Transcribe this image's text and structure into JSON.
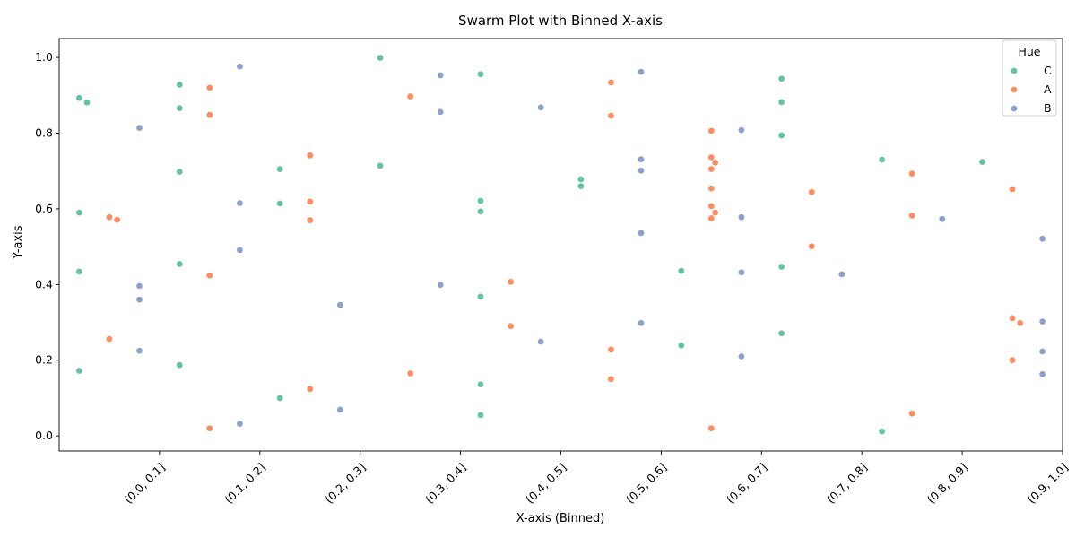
{
  "chart_data": {
    "type": "scatter",
    "subtype": "swarm",
    "title": "Swarm Plot with Binned X-axis",
    "xlabel": "X-axis (Binned)",
    "ylabel": "Y-axis",
    "categories": [
      "(0.0, 0.1]",
      "(0.1, 0.2]",
      "(0.2, 0.3]",
      "(0.3, 0.4]",
      "(0.4, 0.5]",
      "(0.5, 0.6]",
      "(0.6, 0.7]",
      "(0.7, 0.8]",
      "(0.8, 0.9]",
      "(0.9, 1.0]"
    ],
    "ylim": [
      -0.04,
      1.05
    ],
    "yticks": [
      "0.0",
      "0.2",
      "0.4",
      "0.6",
      "0.8",
      "1.0"
    ],
    "grid": false,
    "legend": {
      "title": "Hue",
      "placement": "top-right"
    },
    "series": [
      {
        "name": "C",
        "color": "#66c2a5",
        "points": [
          {
            "bin": 0,
            "y": 0.893
          },
          {
            "bin": 0,
            "y": 0.881
          },
          {
            "bin": 0,
            "y": 0.59
          },
          {
            "bin": 0,
            "y": 0.434
          },
          {
            "bin": 0,
            "y": 0.172
          },
          {
            "bin": 1,
            "y": 0.928
          },
          {
            "bin": 1,
            "y": 0.866
          },
          {
            "bin": 1,
            "y": 0.698
          },
          {
            "bin": 1,
            "y": 0.454
          },
          {
            "bin": 1,
            "y": 0.187
          },
          {
            "bin": 2,
            "y": 0.705
          },
          {
            "bin": 2,
            "y": 0.614
          },
          {
            "bin": 2,
            "y": 0.1
          },
          {
            "bin": 3,
            "y": 0.999
          },
          {
            "bin": 3,
            "y": 0.714
          },
          {
            "bin": 4,
            "y": 0.956
          },
          {
            "bin": 4,
            "y": 0.621
          },
          {
            "bin": 4,
            "y": 0.593
          },
          {
            "bin": 4,
            "y": 0.368
          },
          {
            "bin": 4,
            "y": 0.136
          },
          {
            "bin": 4,
            "y": 0.055
          },
          {
            "bin": 5,
            "y": 0.678
          },
          {
            "bin": 5,
            "y": 0.66
          },
          {
            "bin": 6,
            "y": 0.436
          },
          {
            "bin": 6,
            "y": 0.239
          },
          {
            "bin": 7,
            "y": 0.944
          },
          {
            "bin": 7,
            "y": 0.882
          },
          {
            "bin": 7,
            "y": 0.794
          },
          {
            "bin": 7,
            "y": 0.447
          },
          {
            "bin": 7,
            "y": 0.271
          },
          {
            "bin": 8,
            "y": 0.73
          },
          {
            "bin": 8,
            "y": 0.012
          },
          {
            "bin": 9,
            "y": 0.724
          }
        ]
      },
      {
        "name": "A",
        "color": "#fc8d62",
        "points": [
          {
            "bin": 0,
            "y": 0.578
          },
          {
            "bin": 0,
            "y": 0.571
          },
          {
            "bin": 0,
            "y": 0.256
          },
          {
            "bin": 1,
            "y": 0.92
          },
          {
            "bin": 1,
            "y": 0.848
          },
          {
            "bin": 1,
            "y": 0.424
          },
          {
            "bin": 1,
            "y": 0.02
          },
          {
            "bin": 2,
            "y": 0.741
          },
          {
            "bin": 2,
            "y": 0.619
          },
          {
            "bin": 2,
            "y": 0.57
          },
          {
            "bin": 2,
            "y": 0.124
          },
          {
            "bin": 3,
            "y": 0.897
          },
          {
            "bin": 3,
            "y": 0.165
          },
          {
            "bin": 4,
            "y": 0.407
          },
          {
            "bin": 4,
            "y": 0.29
          },
          {
            "bin": 5,
            "y": 0.934
          },
          {
            "bin": 5,
            "y": 0.846
          },
          {
            "bin": 5,
            "y": 0.228
          },
          {
            "bin": 5,
            "y": 0.15
          },
          {
            "bin": 6,
            "y": 0.806
          },
          {
            "bin": 6,
            "y": 0.736
          },
          {
            "bin": 6,
            "y": 0.722
          },
          {
            "bin": 6,
            "y": 0.705
          },
          {
            "bin": 6,
            "y": 0.654
          },
          {
            "bin": 6,
            "y": 0.607
          },
          {
            "bin": 6,
            "y": 0.59
          },
          {
            "bin": 6,
            "y": 0.575
          },
          {
            "bin": 6,
            "y": 0.02
          },
          {
            "bin": 7,
            "y": 0.644
          },
          {
            "bin": 7,
            "y": 0.501
          },
          {
            "bin": 8,
            "y": 0.693
          },
          {
            "bin": 8,
            "y": 0.582
          },
          {
            "bin": 8,
            "y": 0.059
          },
          {
            "bin": 9,
            "y": 0.652
          },
          {
            "bin": 9,
            "y": 0.311
          },
          {
            "bin": 9,
            "y": 0.298
          },
          {
            "bin": 9,
            "y": 0.2
          }
        ]
      },
      {
        "name": "B",
        "color": "#8da0cb",
        "points": [
          {
            "bin": 0,
            "y": 0.814
          },
          {
            "bin": 0,
            "y": 0.396
          },
          {
            "bin": 0,
            "y": 0.36
          },
          {
            "bin": 0,
            "y": 0.225
          },
          {
            "bin": 1,
            "y": 0.976
          },
          {
            "bin": 1,
            "y": 0.615
          },
          {
            "bin": 1,
            "y": 0.491
          },
          {
            "bin": 1,
            "y": 0.032
          },
          {
            "bin": 2,
            "y": 0.346
          },
          {
            "bin": 2,
            "y": 0.069
          },
          {
            "bin": 3,
            "y": 0.953
          },
          {
            "bin": 3,
            "y": 0.856
          },
          {
            "bin": 3,
            "y": 0.399
          },
          {
            "bin": 4,
            "y": 0.868
          },
          {
            "bin": 4,
            "y": 0.249
          },
          {
            "bin": 5,
            "y": 0.962
          },
          {
            "bin": 5,
            "y": 0.731
          },
          {
            "bin": 5,
            "y": 0.701
          },
          {
            "bin": 5,
            "y": 0.536
          },
          {
            "bin": 5,
            "y": 0.298
          },
          {
            "bin": 6,
            "y": 0.808
          },
          {
            "bin": 6,
            "y": 0.578
          },
          {
            "bin": 6,
            "y": 0.432
          },
          {
            "bin": 6,
            "y": 0.21
          },
          {
            "bin": 7,
            "y": 0.427
          },
          {
            "bin": 8,
            "y": 0.573
          },
          {
            "bin": 9,
            "y": 0.521
          },
          {
            "bin": 9,
            "y": 0.302
          },
          {
            "bin": 9,
            "y": 0.223
          },
          {
            "bin": 9,
            "y": 0.163
          }
        ]
      }
    ]
  }
}
